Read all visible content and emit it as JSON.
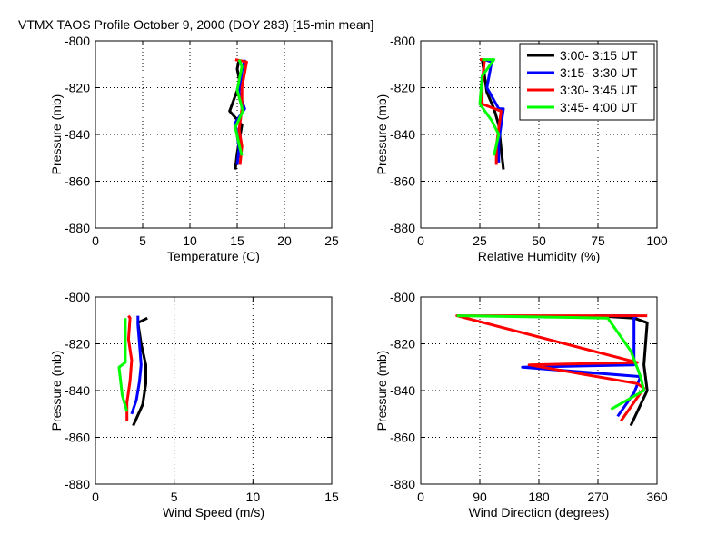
{
  "title": "VTMX TAOS Profile   October 9, 2000 (DOY 283) [15-min mean]",
  "legend": [
    {
      "label": "3:00- 3:15 UT",
      "color": "#000000"
    },
    {
      "label": "3:15- 3:30 UT",
      "color": "#0000ff"
    },
    {
      "label": "3:30- 3:45 UT",
      "color": "#ff0000"
    },
    {
      "label": "3:45- 4:00 UT",
      "color": "#00ff00"
    }
  ],
  "chart_data": [
    {
      "type": "line",
      "id": "temperature",
      "xlabel": "Temperature (C)",
      "ylabel": "Pressure (mb)",
      "xlim": [
        0,
        25
      ],
      "ylim": [
        -880,
        -800
      ],
      "xticks": [
        "0",
        "5",
        "10",
        "15",
        "20",
        "25"
      ],
      "yticks": [
        "-800",
        "-820",
        "-840",
        "-860",
        "-880"
      ],
      "grid": true,
      "series": [
        {
          "name": "3:00- 3:15 UT",
          "x": [
            15.2,
            15.0,
            15.3,
            14.2,
            15.5,
            15.0,
            14.8
          ],
          "y": [
            -808,
            -812,
            -818,
            -830,
            -836,
            -848,
            -855
          ]
        },
        {
          "name": "3:15- 3:30 UT",
          "x": [
            15.8,
            15.5,
            15.2,
            15.8,
            14.8,
            15.2,
            15.0
          ],
          "y": [
            -808,
            -813,
            -822,
            -829,
            -835,
            -846,
            -853
          ]
        },
        {
          "name": "3:30- 3:45 UT",
          "x": [
            14.8,
            16.0,
            15.5,
            15.5,
            15.2,
            15.5,
            15.3
          ],
          "y": [
            -808,
            -809,
            -820,
            -829,
            -838,
            -845,
            -853
          ]
        },
        {
          "name": "3:45- 4:00 UT",
          "x": [
            15.2,
            15.5,
            15.0,
            15.6,
            14.8,
            15.3,
            15.5
          ],
          "y": [
            -808,
            -811,
            -821,
            -830,
            -837,
            -846,
            -849
          ]
        }
      ]
    },
    {
      "type": "line",
      "id": "humidity",
      "xlabel": "Relative Humidity (%)",
      "ylabel": "Pressure (mb)",
      "xlim": [
        0,
        100
      ],
      "ylim": [
        -880,
        -800
      ],
      "xticks": [
        "0",
        "25",
        "50",
        "75",
        "100"
      ],
      "yticks": [
        "-800",
        "-820",
        "-840",
        "-860",
        "-880"
      ],
      "grid": true,
      "series": [
        {
          "name": "3:00- 3:15 UT",
          "x": [
            26,
            27,
            28,
            31,
            33,
            34,
            35
          ],
          "y": [
            -808,
            -815,
            -822,
            -829,
            -836,
            -846,
            -855
          ]
        },
        {
          "name": "3:15- 3:30 UT",
          "x": [
            27,
            30,
            28,
            33,
            35,
            33,
            33
          ],
          "y": [
            -808,
            -809,
            -820,
            -829,
            -829,
            -843,
            -852
          ]
        },
        {
          "name": "3:30- 3:45 UT",
          "x": [
            25,
            27,
            26,
            26,
            34,
            32,
            32
          ],
          "y": [
            -808,
            -808,
            -818,
            -827,
            -830,
            -845,
            -853
          ]
        },
        {
          "name": "3:45- 4:00 UT",
          "x": [
            26,
            31,
            26,
            25,
            30,
            33,
            31
          ],
          "y": [
            -808,
            -808,
            -815,
            -827,
            -834,
            -840,
            -849
          ]
        }
      ]
    },
    {
      "type": "line",
      "id": "wind-speed",
      "xlabel": "Wind Speed (m/s)",
      "ylabel": "Pressure (mb)",
      "xlim": [
        0,
        15
      ],
      "ylim": [
        -880,
        -800
      ],
      "xticks": [
        "0",
        "5",
        "10",
        "15"
      ],
      "yticks": [
        "-800",
        "-820",
        "-840",
        "-860",
        "-880"
      ],
      "grid": true,
      "series": [
        {
          "name": "3:00- 3:15 UT",
          "x": [
            3.3,
            2.7,
            2.9,
            3.2,
            3.2,
            3.0,
            2.4
          ],
          "y": [
            -809,
            -811,
            -820,
            -829,
            -837,
            -846,
            -855
          ]
        },
        {
          "name": "3:15- 3:30 UT",
          "x": [
            2.7,
            2.7,
            2.8,
            2.9,
            2.8,
            2.6,
            2.3
          ],
          "y": [
            -808,
            -812,
            -820,
            -829,
            -836,
            -844,
            -850
          ]
        },
        {
          "name": "3:30- 3:45 UT",
          "x": [
            2.1,
            2.2,
            2.1,
            2.3,
            2.2,
            2.0,
            2.0
          ],
          "y": [
            -808,
            -809,
            -818,
            -827,
            -836,
            -845,
            -853
          ]
        },
        {
          "name": "3:45- 4:00 UT",
          "x": [
            1.9,
            1.9,
            1.9,
            1.9,
            1.5,
            1.7,
            2.0
          ],
          "y": [
            -809,
            -812,
            -820,
            -828,
            -830,
            -842,
            -849
          ]
        }
      ]
    },
    {
      "type": "line",
      "id": "wind-direction",
      "xlabel": "Wind Direction (degrees)",
      "ylabel": "Pressure (mb)",
      "xlim": [
        0,
        360
      ],
      "ylim": [
        -880,
        -800
      ],
      "xticks": [
        "0",
        "90",
        "180",
        "270",
        "360"
      ],
      "yticks": [
        "-800",
        "-820",
        "-840",
        "-860",
        "-880"
      ],
      "grid": true,
      "series": [
        {
          "name": "3:00- 3:15 UT",
          "x": [
            265,
            325,
            345,
            340,
            340,
            345,
            320
          ],
          "y": [
            -808,
            -809,
            -811,
            -829,
            -829,
            -840,
            -855
          ]
        },
        {
          "name": "3:15- 3:30 UT",
          "x": [
            265,
            330,
            325,
            325,
            155,
            335,
            325,
            300
          ],
          "y": [
            -808,
            -808,
            -809,
            -829,
            -830,
            -834,
            -841,
            -851
          ]
        },
        {
          "name": "3:30- 3:45 UT",
          "x": [
            345,
            55,
            330,
            165,
            330,
            340,
            305
          ],
          "y": [
            -808,
            -808,
            -828,
            -829,
            -837,
            -839,
            -853
          ]
        },
        {
          "name": "3:45- 4:00 UT",
          "x": [
            55,
            285,
            320,
            335,
            340,
            290
          ],
          "y": [
            -808,
            -809,
            -823,
            -834,
            -840,
            -848
          ]
        }
      ]
    }
  ]
}
